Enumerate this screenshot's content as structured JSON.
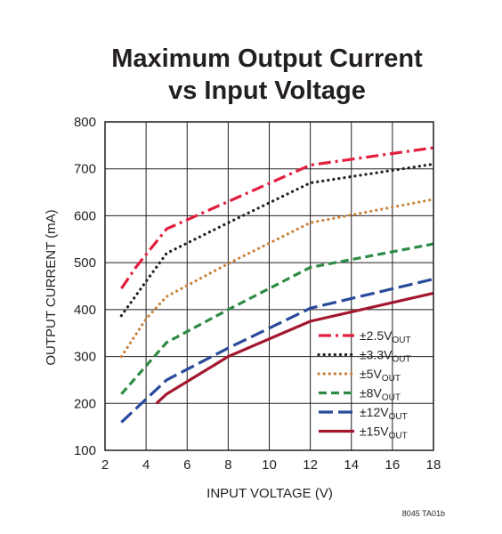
{
  "chart_data": {
    "type": "line",
    "title_lines": [
      "Maximum Output Current",
      "vs Input Voltage"
    ],
    "xlabel": "INPUT VOLTAGE (V)",
    "ylabel": "OUTPUT CURRENT (mA)",
    "xlim": [
      2,
      18
    ],
    "ylim": [
      100,
      800
    ],
    "xticks": [
      2,
      4,
      6,
      8,
      10,
      12,
      14,
      16,
      18
    ],
    "yticks": [
      100,
      200,
      300,
      400,
      500,
      600,
      700,
      800
    ],
    "grid": true,
    "legend_placement": "lower-right",
    "footnote": "8045 TA01b",
    "series": [
      {
        "name": "±2.5V",
        "subscript": "OUT",
        "color": "#e21f3d",
        "dash": "dashdot",
        "x": [
          2.8,
          3.5,
          5,
          12,
          18
        ],
        "y": [
          445,
          490,
          572,
          708,
          745
        ]
      },
      {
        "name": "±3.3V",
        "subscript": "OUT",
        "color": "#231f20",
        "dash": "dotted",
        "x": [
          2.8,
          4,
          5,
          8,
          12,
          18
        ],
        "y": [
          387,
          460,
          520,
          585,
          670,
          710
        ]
      },
      {
        "name": "±5V",
        "subscript": "OUT",
        "color": "#c8823a",
        "dash": "dotted",
        "x": [
          2.8,
          4,
          5,
          8,
          12,
          18
        ],
        "y": [
          300,
          380,
          428,
          498,
          585,
          635
        ]
      },
      {
        "name": "±8V",
        "subscript": "OUT",
        "color": "#2e8b45",
        "dash": "dashed",
        "x": [
          2.8,
          5,
          8,
          12,
          18
        ],
        "y": [
          220,
          330,
          400,
          490,
          540
        ]
      },
      {
        "name": "±12V",
        "subscript": "OUT",
        "color": "#2a4b9b",
        "dash": "longdash",
        "x": [
          2.8,
          5,
          8,
          12,
          18
        ],
        "y": [
          160,
          250,
          318,
          403,
          465
        ]
      },
      {
        "name": "±15V",
        "subscript": "OUT",
        "color": "#a3172f",
        "dash": "solid",
        "x": [
          4.5,
          5,
          8,
          12,
          18
        ],
        "y": [
          200,
          220,
          300,
          375,
          435
        ]
      }
    ]
  }
}
